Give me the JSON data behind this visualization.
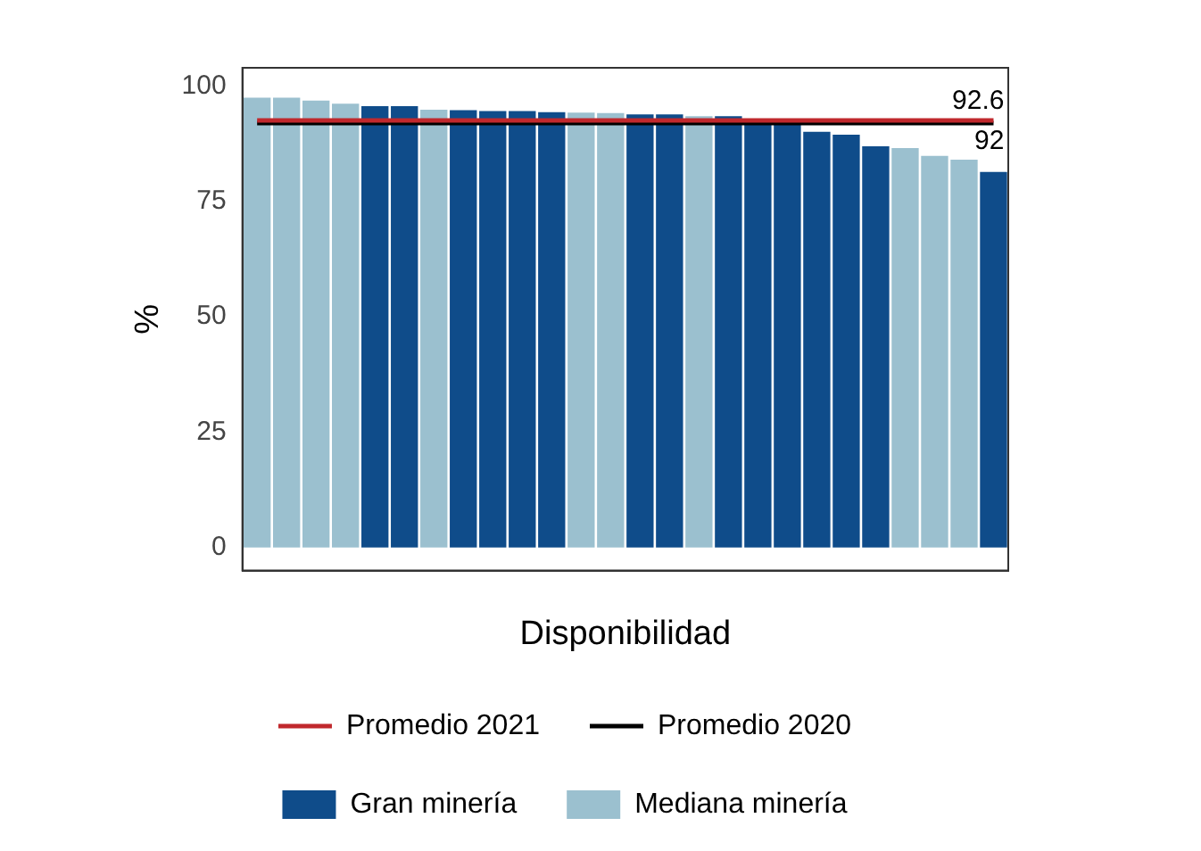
{
  "chart_data": {
    "type": "bar",
    "xlabel": "Disponibilidad",
    "ylabel": "%",
    "categories": [
      null,
      null,
      null,
      null,
      null,
      null,
      null,
      null,
      null,
      null,
      null,
      null,
      null,
      null,
      null,
      null,
      null,
      null,
      null,
      null,
      null,
      null,
      null,
      null,
      null,
      null
    ],
    "series": [
      {
        "name": "Gran minería",
        "color": "#0f4c8a",
        "values": [
          null,
          null,
          null,
          null,
          95.7,
          95.7,
          null,
          94.8,
          94.6,
          94.6,
          94.4,
          null,
          null,
          93.9,
          93.9,
          null,
          93.5,
          92.8,
          92.5,
          90.1,
          89.5,
          87.0,
          null,
          null,
          null,
          81.4
        ]
      },
      {
        "name": "Mediana minería",
        "color": "#9bc0cf",
        "values": [
          97.5,
          97.5,
          96.9,
          96.2,
          null,
          null,
          94.9,
          null,
          null,
          null,
          null,
          94.3,
          94.2,
          null,
          null,
          93.5,
          null,
          null,
          null,
          null,
          null,
          null,
          86.6,
          84.9,
          84.1,
          null
        ]
      },
      {
        "name": "Promedio 2021",
        "type": "line",
        "color": "#c0282d",
        "values": [
          92.6,
          92.6,
          92.6,
          92.6,
          92.6,
          92.6,
          92.6,
          92.6,
          92.6,
          92.6,
          92.6,
          92.6,
          92.6,
          92.6,
          92.6,
          92.6,
          92.6,
          92.6,
          92.6,
          92.6,
          92.6,
          92.6,
          92.6,
          92.6,
          92.6,
          92.6
        ],
        "value_labels": [
          null,
          null,
          null,
          null,
          null,
          null,
          null,
          null,
          null,
          null,
          null,
          null,
          null,
          null,
          null,
          null,
          null,
          null,
          null,
          null,
          null,
          null,
          null,
          null,
          null,
          "92.6"
        ]
      },
      {
        "name": "Promedio 2020",
        "type": "line",
        "color": "#000000",
        "values": [
          92,
          92,
          92,
          92,
          92,
          92,
          92,
          92,
          92,
          92,
          92,
          92,
          92,
          92,
          92,
          92,
          92,
          92,
          92,
          92,
          92,
          92,
          92,
          92,
          92,
          92
        ],
        "value_labels": [
          null,
          null,
          null,
          null,
          null,
          null,
          null,
          null,
          null,
          null,
          null,
          null,
          null,
          null,
          null,
          null,
          null,
          null,
          null,
          null,
          null,
          null,
          null,
          null,
          null,
          "92"
        ]
      }
    ],
    "ylim": [
      -5,
      104
    ],
    "yticks": [
      0,
      25,
      50,
      75,
      100
    ],
    "grid": false,
    "legend": "bottom",
    "marker": "none"
  }
}
